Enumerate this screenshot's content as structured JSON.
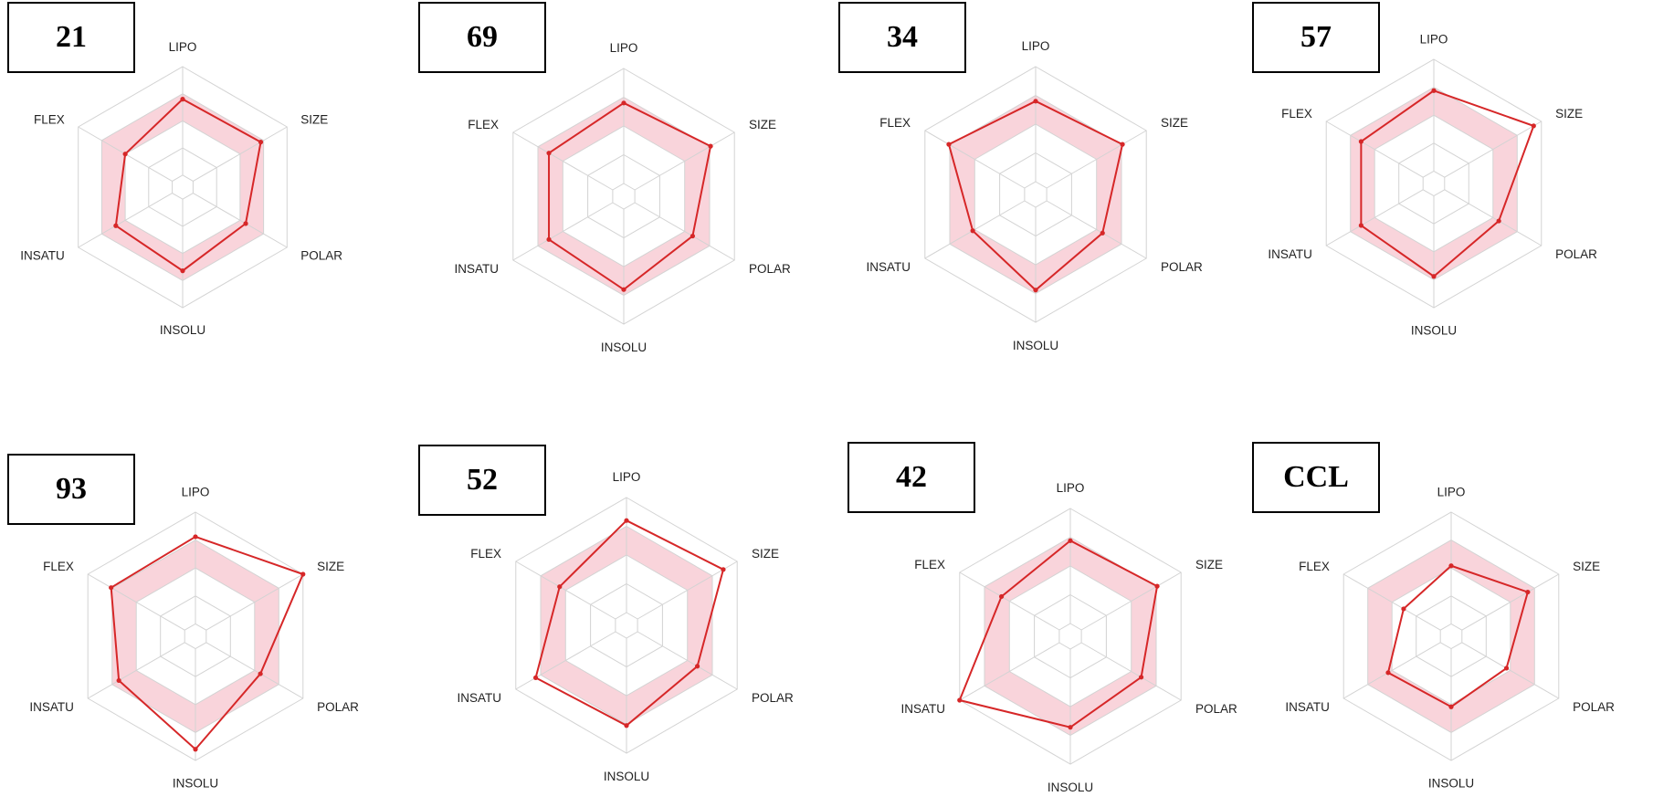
{
  "colors": {
    "line": "#d62728",
    "band_fill": "#f7c6cf",
    "grid": "#d3d3d3",
    "box_border": "#000000"
  },
  "chart_data": [
    {
      "type": "radar",
      "title": "21",
      "axes": [
        "LIPO",
        "SIZE",
        "POLAR",
        "INSOLU",
        "INSATU",
        "FLEX"
      ],
      "optimal_band": [
        0.5,
        0.75
      ],
      "grid_rings": [
        0.25,
        0.5,
        0.75,
        1.0
      ],
      "values": [
        0.7,
        0.72,
        0.56,
        0.66,
        0.6,
        0.5
      ]
    },
    {
      "type": "radar",
      "title": "69",
      "axes": [
        "LIPO",
        "SIZE",
        "POLAR",
        "INSOLU",
        "INSATU",
        "FLEX"
      ],
      "optimal_band": [
        0.5,
        0.75
      ],
      "grid_rings": [
        0.25,
        0.5,
        0.75,
        1.0
      ],
      "values": [
        0.7,
        0.76,
        0.58,
        0.7,
        0.64,
        0.64
      ]
    },
    {
      "type": "radar",
      "title": "34",
      "axes": [
        "LIPO",
        "SIZE",
        "POLAR",
        "INSOLU",
        "INSATU",
        "FLEX"
      ],
      "optimal_band": [
        0.5,
        0.75
      ],
      "grid_rings": [
        0.25,
        0.5,
        0.75,
        1.0
      ],
      "values": [
        0.7,
        0.76,
        0.56,
        0.72,
        0.52,
        0.76
      ]
    },
    {
      "type": "radar",
      "title": "57",
      "axes": [
        "LIPO",
        "SIZE",
        "POLAR",
        "INSOLU",
        "INSATU",
        "FLEX"
      ],
      "optimal_band": [
        0.5,
        0.75
      ],
      "grid_rings": [
        0.25,
        0.5,
        0.75,
        1.0
      ],
      "values": [
        0.72,
        0.92,
        0.56,
        0.72,
        0.64,
        0.64
      ]
    },
    {
      "type": "radar",
      "title": "93",
      "axes": [
        "LIPO",
        "SIZE",
        "POLAR",
        "INSOLU",
        "INSATU",
        "FLEX"
      ],
      "optimal_band": [
        0.5,
        0.75
      ],
      "grid_rings": [
        0.25,
        0.5,
        0.75,
        1.0
      ],
      "values": [
        0.78,
        1.0,
        0.56,
        0.9,
        0.68,
        0.76
      ]
    },
    {
      "type": "radar",
      "title": "52",
      "axes": [
        "LIPO",
        "SIZE",
        "POLAR",
        "INSOLU",
        "INSATU",
        "FLEX"
      ],
      "optimal_band": [
        0.5,
        0.75
      ],
      "grid_rings": [
        0.25,
        0.5,
        0.75,
        1.0
      ],
      "values": [
        0.8,
        0.86,
        0.6,
        0.76,
        0.8,
        0.56
      ]
    },
    {
      "type": "radar",
      "title": "42",
      "axes": [
        "LIPO",
        "SIZE",
        "POLAR",
        "INSOLU",
        "INSATU",
        "FLEX"
      ],
      "optimal_band": [
        0.5,
        0.75
      ],
      "grid_rings": [
        0.25,
        0.5,
        0.75,
        1.0
      ],
      "values": [
        0.72,
        0.76,
        0.6,
        0.68,
        1.0,
        0.58
      ]
    },
    {
      "type": "radar",
      "title": "CCL",
      "axes": [
        "LIPO",
        "SIZE",
        "POLAR",
        "INSOLU",
        "INSATU",
        "FLEX"
      ],
      "optimal_band": [
        0.5,
        0.75
      ],
      "grid_rings": [
        0.25,
        0.5,
        0.75,
        1.0
      ],
      "values": [
        0.52,
        0.68,
        0.46,
        0.52,
        0.54,
        0.38
      ]
    }
  ]
}
